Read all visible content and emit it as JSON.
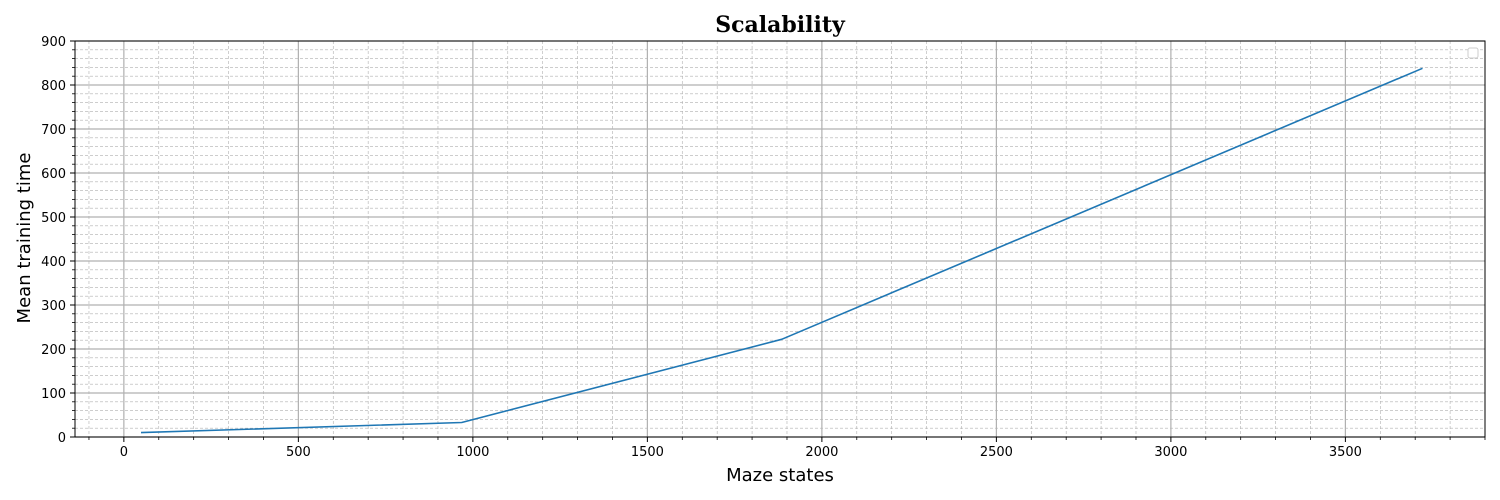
{
  "chart_data": {
    "type": "line",
    "title": "Scalability",
    "xlabel": "Maze states",
    "ylabel": "Mean training time",
    "xlim": [
      -140,
      3900
    ],
    "ylim": [
      0,
      900
    ],
    "x_ticks": [
      0,
      500,
      1000,
      1500,
      2000,
      2500,
      3000,
      3500
    ],
    "y_ticks": [
      0,
      100,
      200,
      300,
      400,
      500,
      600,
      700,
      800,
      900
    ],
    "grid": true,
    "minor_grid": true,
    "legend": "top-right (empty)",
    "series": [
      {
        "color": "#1f77b4",
        "x": [
          49,
          968,
          1885,
          3721
        ],
        "y": [
          10,
          33,
          222,
          838
        ]
      }
    ]
  }
}
